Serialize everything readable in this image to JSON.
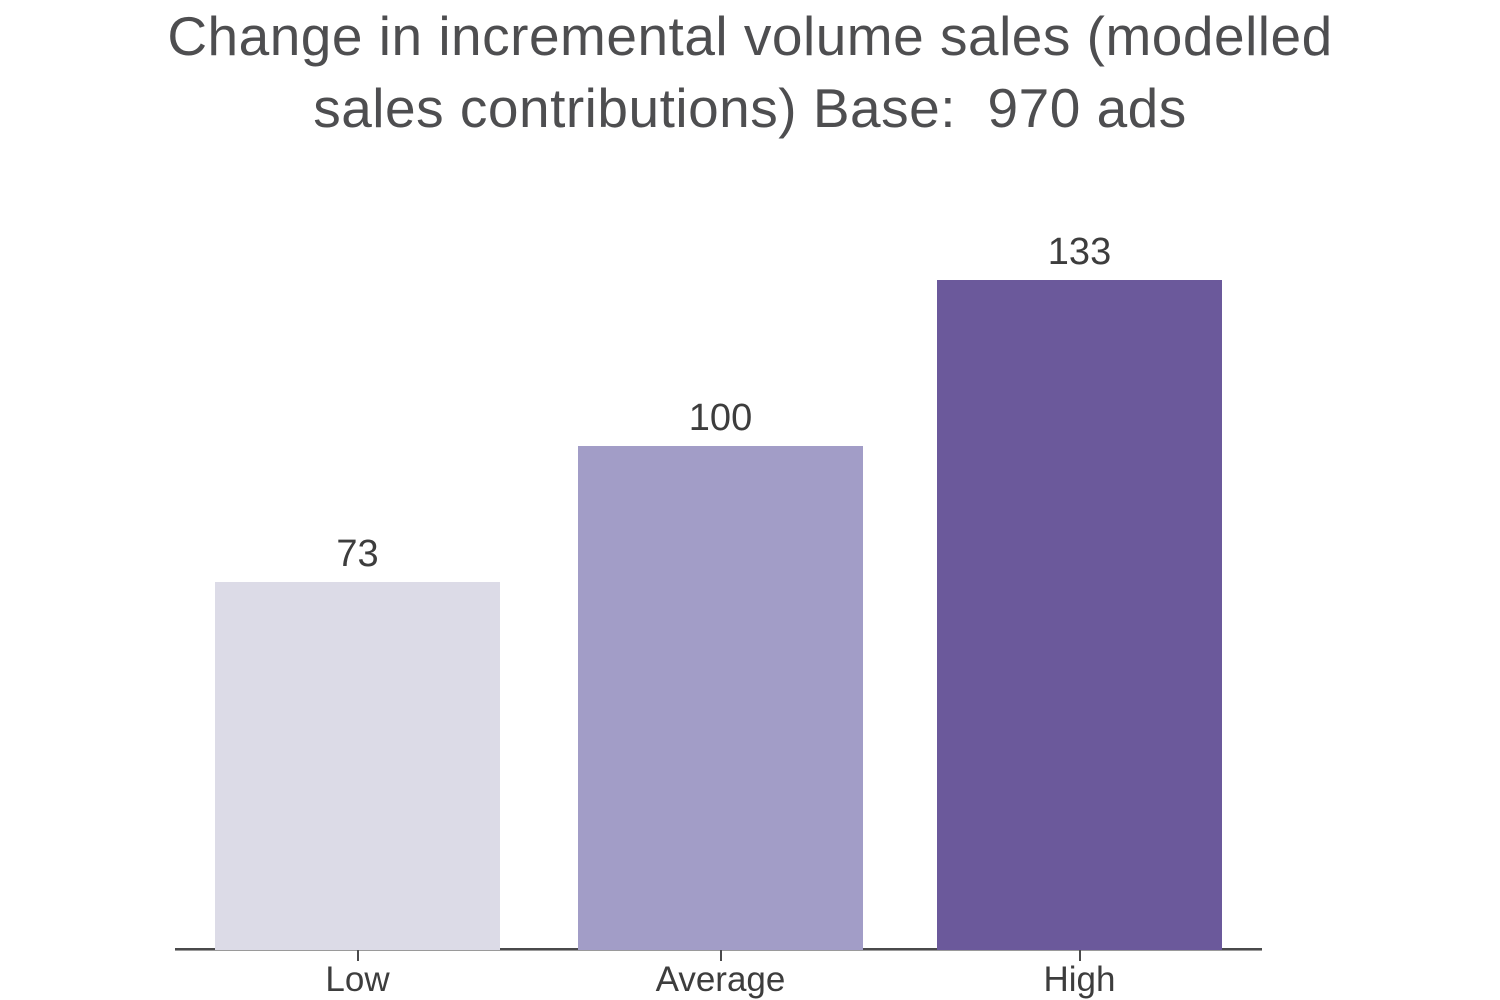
{
  "header": {
    "title_line1": "Change in incremental volume sales (modelled",
    "title_line2": "sales contributions) Base:  970 ads"
  },
  "chart_data": {
    "type": "bar",
    "title": "Change in incremental volume sales (modelled sales contributions) Base:  970 ads",
    "categories": [
      "Low",
      "Average",
      "High"
    ],
    "values": [
      73,
      100,
      133
    ],
    "value_labels_shown": true,
    "xlabel": "",
    "ylabel": "",
    "ylim": [
      0,
      146
    ],
    "grid": false,
    "legend": false,
    "colors": {
      "bar_low": "#dcdbe7",
      "bar_average": "#a29dc7",
      "bar_high": "#6b599b",
      "axis_line": "#4a4a4b",
      "tick": "#4a4a4b",
      "value_label_text": "#3d3d3d",
      "category_label_text": "#3d3d3d",
      "title_text": "#4e4e50",
      "background": "#ffffff"
    }
  }
}
